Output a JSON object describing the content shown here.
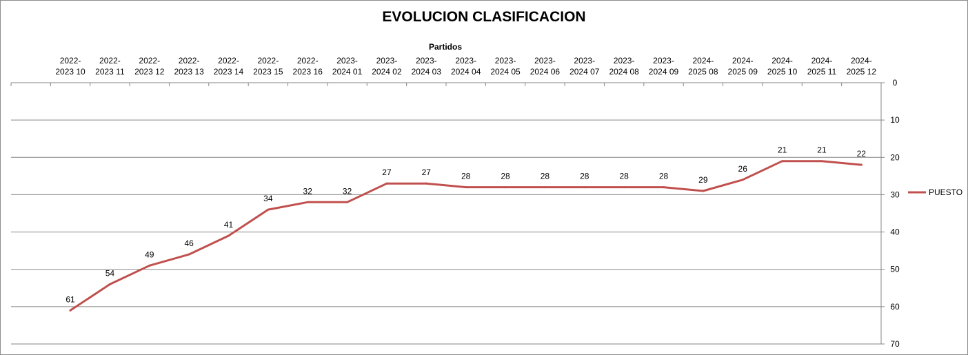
{
  "chart_data": {
    "type": "line",
    "title": "EVOLUCION CLASIFICACION",
    "xlabel": "Partidos",
    "ylabel": "",
    "categories": [
      [
        "",
        ""
      ],
      [
        "2022-",
        "2023 10"
      ],
      [
        "2022-",
        "2023 11"
      ],
      [
        "2022-",
        "2023 12"
      ],
      [
        "2022-",
        "2023 13"
      ],
      [
        "2022-",
        "2023 14"
      ],
      [
        "2022-",
        "2023 15"
      ],
      [
        "2022-",
        "2023 16"
      ],
      [
        "2023-",
        "2024 01"
      ],
      [
        "2023-",
        "2024 02"
      ],
      [
        "2023-",
        "2024 03"
      ],
      [
        "2023-",
        "2024 04"
      ],
      [
        "2023-",
        "2024 05"
      ],
      [
        "2023-",
        "2024 06"
      ],
      [
        "2023-",
        "2024 07"
      ],
      [
        "2023-",
        "2024 08"
      ],
      [
        "2023-",
        "2024 09"
      ],
      [
        "2024-",
        "2025 08"
      ],
      [
        "2024-",
        "2025 09"
      ],
      [
        "2024-",
        "2025 10"
      ],
      [
        "2024-",
        "2025 11"
      ],
      [
        "2024-",
        "2025 12"
      ]
    ],
    "series": [
      {
        "name": "PUESTO",
        "color": "#c0504d",
        "values": [
          null,
          61,
          54,
          49,
          46,
          41,
          34,
          32,
          32,
          27,
          27,
          28,
          28,
          28,
          28,
          28,
          28,
          29,
          26,
          21,
          21,
          22
        ]
      }
    ],
    "y_axis": {
      "min": 0,
      "max": 70,
      "step": 10,
      "reversed": true,
      "position": "right",
      "ticks": [
        0,
        10,
        20,
        30,
        40,
        50,
        60,
        70
      ]
    },
    "x_axis_position": "top",
    "grid": true,
    "legend": "right"
  }
}
